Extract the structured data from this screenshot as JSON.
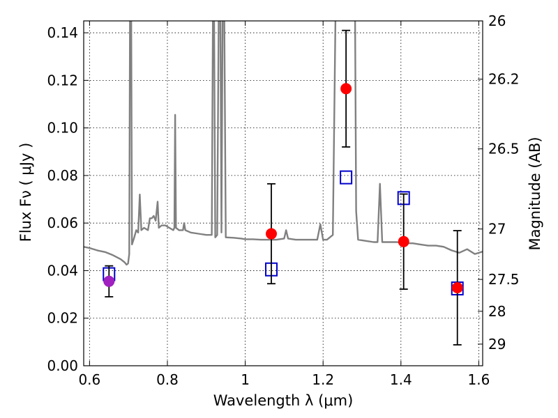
{
  "chart_data": {
    "type": "scatter",
    "xlabel": "Wavelength  λ (μm)",
    "ylabel": "Flux  Fν ( μJy )",
    "ylabel_right": "Magnitude (AB)",
    "xlim": [
      0.585,
      1.61
    ],
    "ylim": [
      0.0,
      0.145
    ],
    "grid": true,
    "x_ticks": [
      {
        "value": 0.6,
        "label": "0.6"
      },
      {
        "value": 0.8,
        "label": "0.8"
      },
      {
        "value": 1.0,
        "label": "1"
      },
      {
        "value": 1.2,
        "label": "1.2"
      },
      {
        "value": 1.4,
        "label": "1.4"
      },
      {
        "value": 1.6,
        "label": "1.6"
      }
    ],
    "y_ticks": [
      {
        "value": 0.0,
        "label": "0.00"
      },
      {
        "value": 0.02,
        "label": "0.02"
      },
      {
        "value": 0.04,
        "label": "0.04"
      },
      {
        "value": 0.06,
        "label": "0.06"
      },
      {
        "value": 0.08,
        "label": "0.08"
      },
      {
        "value": 0.1,
        "label": "0.10"
      },
      {
        "value": 0.12,
        "label": "0.12"
      },
      {
        "value": 0.14,
        "label": "0.14"
      }
    ],
    "right_ticks": [
      {
        "flux": 0.145,
        "label": "26"
      },
      {
        "flux": 0.1205,
        "label": "26.2"
      },
      {
        "flux": 0.0912,
        "label": "26.5"
      },
      {
        "flux": 0.0575,
        "label": "27"
      },
      {
        "flux": 0.0363,
        "label": "27.5"
      },
      {
        "flux": 0.0229,
        "label": "28"
      },
      {
        "flux": 0.0091,
        "label": "29"
      }
    ],
    "colors": {
      "spectrum": "#808080",
      "observed": "#ff0000",
      "observed_first": "#a020c0",
      "model": "#0000cc",
      "errorbar": "#000000"
    },
    "series": [
      {
        "values": [
          {
            "x": 0.585,
            "y": 0.05
          },
          {
            "x": 0.6,
            "y": 0.0495
          },
          {
            "x": 0.62,
            "y": 0.0485
          },
          {
            "x": 0.64,
            "y": 0.0478
          },
          {
            "x": 0.66,
            "y": 0.0465
          },
          {
            "x": 0.68,
            "y": 0.0448
          },
          {
            "x": 0.69,
            "y": 0.0435
          },
          {
            "x": 0.695,
            "y": 0.0425
          },
          {
            "x": 0.699,
            "y": 0.043
          },
          {
            "x": 0.702,
            "y": 0.047
          },
          {
            "x": 0.704,
            "y": 0.15
          },
          {
            "x": 0.707,
            "y": 0.15
          },
          {
            "x": 0.709,
            "y": 0.051
          },
          {
            "x": 0.715,
            "y": 0.054
          },
          {
            "x": 0.72,
            "y": 0.057
          },
          {
            "x": 0.725,
            "y": 0.056
          },
          {
            "x": 0.729,
            "y": 0.072
          },
          {
            "x": 0.733,
            "y": 0.057
          },
          {
            "x": 0.74,
            "y": 0.058
          },
          {
            "x": 0.75,
            "y": 0.057
          },
          {
            "x": 0.755,
            "y": 0.062
          },
          {
            "x": 0.76,
            "y": 0.062
          },
          {
            "x": 0.765,
            "y": 0.063
          },
          {
            "x": 0.77,
            "y": 0.061
          },
          {
            "x": 0.775,
            "y": 0.069
          },
          {
            "x": 0.778,
            "y": 0.058
          },
          {
            "x": 0.785,
            "y": 0.059
          },
          {
            "x": 0.795,
            "y": 0.059
          },
          {
            "x": 0.805,
            "y": 0.058
          },
          {
            "x": 0.815,
            "y": 0.057
          },
          {
            "x": 0.818,
            "y": 0.058
          },
          {
            "x": 0.82,
            "y": 0.1055
          },
          {
            "x": 0.822,
            "y": 0.058
          },
          {
            "x": 0.83,
            "y": 0.057
          },
          {
            "x": 0.84,
            "y": 0.057
          },
          {
            "x": 0.843,
            "y": 0.06
          },
          {
            "x": 0.846,
            "y": 0.057
          },
          {
            "x": 0.86,
            "y": 0.056
          },
          {
            "x": 0.88,
            "y": 0.0555
          },
          {
            "x": 0.9,
            "y": 0.055
          },
          {
            "x": 0.914,
            "y": 0.055
          },
          {
            "x": 0.917,
            "y": 0.15
          },
          {
            "x": 0.92,
            "y": 0.15
          },
          {
            "x": 0.923,
            "y": 0.054
          },
          {
            "x": 0.928,
            "y": 0.055
          },
          {
            "x": 0.932,
            "y": 0.15
          },
          {
            "x": 0.936,
            "y": 0.15
          },
          {
            "x": 0.939,
            "y": 0.056
          },
          {
            "x": 0.942,
            "y": 0.15
          },
          {
            "x": 0.946,
            "y": 0.15
          },
          {
            "x": 0.95,
            "y": 0.054
          },
          {
            "x": 0.97,
            "y": 0.0538
          },
          {
            "x": 0.99,
            "y": 0.0535
          },
          {
            "x": 1.0,
            "y": 0.0532
          },
          {
            "x": 1.02,
            "y": 0.0532
          },
          {
            "x": 1.04,
            "y": 0.053
          },
          {
            "x": 1.06,
            "y": 0.053
          },
          {
            "x": 1.08,
            "y": 0.053
          },
          {
            "x": 1.1,
            "y": 0.0535
          },
          {
            "x": 1.105,
            "y": 0.057
          },
          {
            "x": 1.11,
            "y": 0.0535
          },
          {
            "x": 1.13,
            "y": 0.053
          },
          {
            "x": 1.15,
            "y": 0.053
          },
          {
            "x": 1.17,
            "y": 0.053
          },
          {
            "x": 1.185,
            "y": 0.053
          },
          {
            "x": 1.193,
            "y": 0.0595
          },
          {
            "x": 1.2,
            "y": 0.053
          },
          {
            "x": 1.21,
            "y": 0.053
          },
          {
            "x": 1.225,
            "y": 0.055
          },
          {
            "x": 1.232,
            "y": 0.15
          },
          {
            "x": 1.282,
            "y": 0.15
          },
          {
            "x": 1.285,
            "y": 0.065
          },
          {
            "x": 1.29,
            "y": 0.053
          },
          {
            "x": 1.31,
            "y": 0.0525
          },
          {
            "x": 1.33,
            "y": 0.052
          },
          {
            "x": 1.34,
            "y": 0.052
          },
          {
            "x": 1.346,
            "y": 0.0765
          },
          {
            "x": 1.352,
            "y": 0.052
          },
          {
            "x": 1.37,
            "y": 0.052
          },
          {
            "x": 1.39,
            "y": 0.052
          },
          {
            "x": 1.41,
            "y": 0.0515
          },
          {
            "x": 1.43,
            "y": 0.0515
          },
          {
            "x": 1.45,
            "y": 0.051
          },
          {
            "x": 1.47,
            "y": 0.0505
          },
          {
            "x": 1.49,
            "y": 0.0505
          },
          {
            "x": 1.51,
            "y": 0.05
          },
          {
            "x": 1.53,
            "y": 0.0485
          },
          {
            "x": 1.55,
            "y": 0.0475
          },
          {
            "x": 1.57,
            "y": 0.049
          },
          {
            "x": 1.59,
            "y": 0.047
          },
          {
            "x": 1.61,
            "y": 0.048
          }
        ]
      },
      {
        "values": [
          {
            "x": 0.65,
            "y": 0.0385
          },
          {
            "x": 1.067,
            "y": 0.0405
          },
          {
            "x": 1.259,
            "y": 0.0792
          },
          {
            "x": 1.407,
            "y": 0.0705
          },
          {
            "x": 1.545,
            "y": 0.0325
          }
        ]
      },
      {
        "values": [
          {
            "x": 0.65,
            "y": 0.0355,
            "yerr_low": 0.0065,
            "yerr_high": 0.0065
          },
          {
            "x": 1.067,
            "y": 0.0555,
            "yerr_low": 0.021,
            "yerr_high": 0.021
          },
          {
            "x": 1.259,
            "y": 0.1165,
            "yerr_low": 0.0245,
            "yerr_high": 0.0245
          },
          {
            "x": 1.407,
            "y": 0.0522,
            "yerr_low": 0.02,
            "yerr_high": 0.02
          },
          {
            "x": 1.545,
            "y": 0.0328,
            "yerr_low": 0.024,
            "yerr_high": 0.024
          }
        ]
      }
    ]
  }
}
